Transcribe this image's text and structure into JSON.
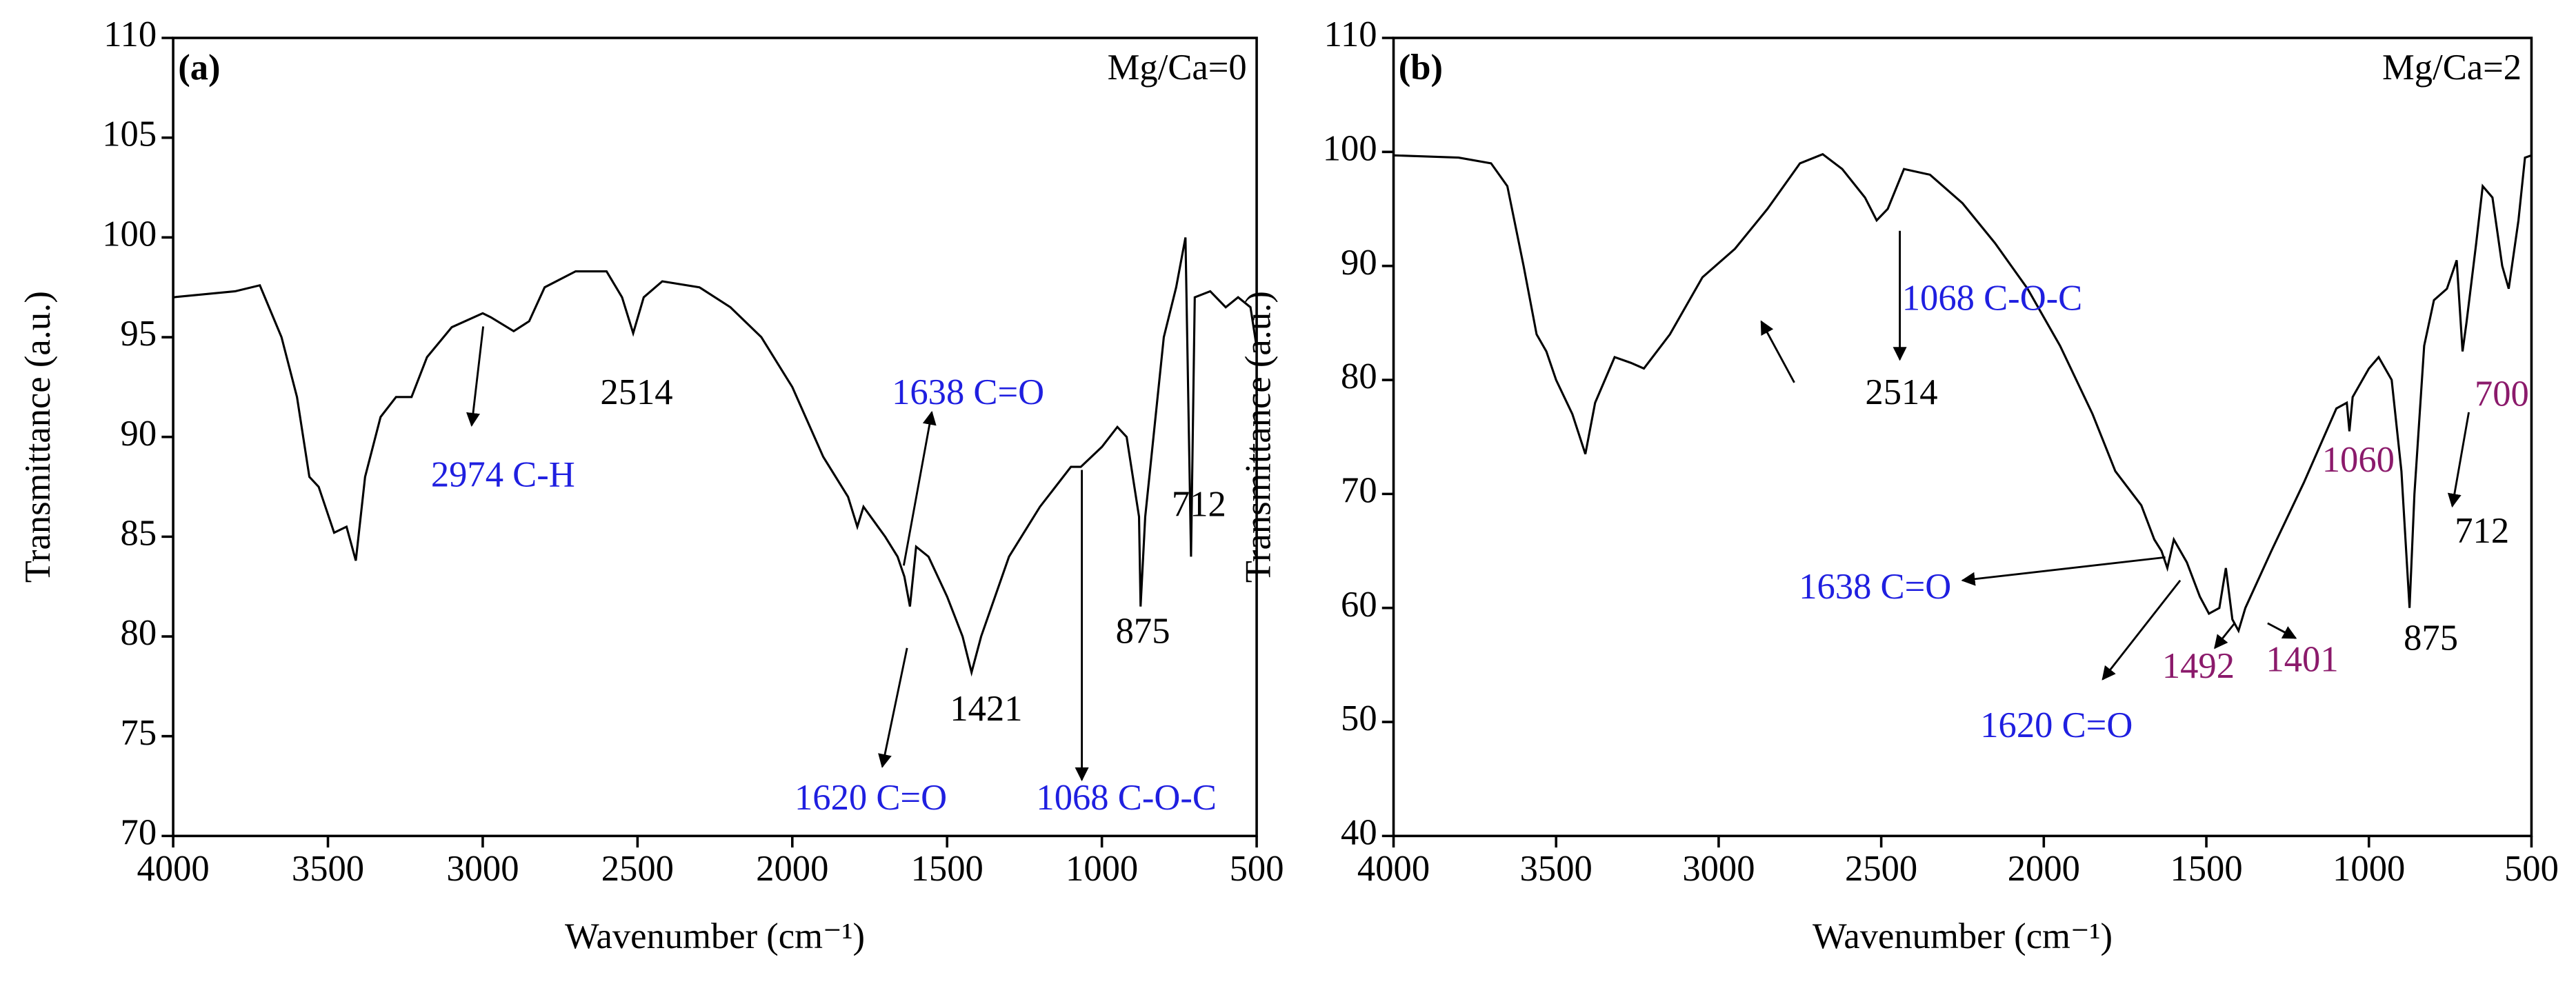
{
  "chart_data": [
    {
      "type": "line",
      "panel_label": "(a)",
      "title": "Mg/Ca=0",
      "x_label": "Wavenumber (cm⁻¹)",
      "y_label": "Transmittance (a.u.)",
      "color": "#000000",
      "xlim": [
        4000,
        500
      ],
      "xticks": [
        4000,
        3500,
        3000,
        2500,
        2000,
        1500,
        1000,
        500
      ],
      "ylim": [
        70,
        110
      ],
      "yticks": [
        70,
        75,
        80,
        85,
        90,
        95,
        100,
        105,
        110
      ],
      "x": [
        4000,
        3800,
        3720,
        3650,
        3600,
        3560,
        3530,
        3480,
        3440,
        3410,
        3380,
        3330,
        3280,
        3230,
        3180,
        3100,
        3000,
        2974,
        2900,
        2850,
        2800,
        2700,
        2600,
        2550,
        2514,
        2480,
        2420,
        2300,
        2200,
        2100,
        2000,
        1900,
        1820,
        1790,
        1770,
        1700,
        1660,
        1638,
        1620,
        1600,
        1560,
        1500,
        1450,
        1421,
        1390,
        1300,
        1200,
        1100,
        1068,
        1000,
        950,
        920,
        880,
        875,
        860,
        800,
        760,
        730,
        712,
        700,
        650,
        600,
        560,
        520,
        500
      ],
      "values": [
        97,
        97.3,
        97.6,
        95,
        92,
        88,
        87.5,
        85.2,
        85.5,
        83.8,
        88,
        91,
        92,
        92,
        94,
        95.5,
        96.2,
        96,
        95.3,
        95.8,
        97.5,
        98.3,
        98.3,
        97,
        95.2,
        97,
        97.8,
        97.5,
        96.5,
        95,
        92.5,
        89,
        87,
        85.5,
        86.5,
        85,
        84,
        83,
        81.5,
        84.5,
        84,
        82,
        80,
        78.2,
        80,
        84,
        86.5,
        88.5,
        88.5,
        89.5,
        90.5,
        90,
        86,
        81.5,
        86,
        95,
        97.5,
        100,
        84,
        97,
        97.3,
        96.5,
        97,
        96.5,
        94.5
      ],
      "annotations": [
        {
          "text": "2974 C-H",
          "color": "#1f1fe0"
        },
        {
          "text": "2514",
          "color": "#000000"
        },
        {
          "text": "1638 C=O",
          "color": "#1f1fe0"
        },
        {
          "text": "1421",
          "color": "#000000"
        },
        {
          "text": "875",
          "color": "#000000"
        },
        {
          "text": "712",
          "color": "#000000"
        },
        {
          "text": "1620 C=O",
          "color": "#1f1fe0"
        },
        {
          "text": "1068 C-O-C",
          "color": "#1f1fe0"
        }
      ]
    },
    {
      "type": "line",
      "panel_label": "(b)",
      "title": "Mg/Ca=2",
      "x_label": "Wavenumber (cm⁻¹)",
      "y_label": "Transmittance (a.u.)",
      "color": "#000000",
      "xlim": [
        4000,
        500
      ],
      "xticks": [
        4000,
        3500,
        3000,
        2500,
        2000,
        1500,
        1000,
        500
      ],
      "ylim": [
        40,
        110
      ],
      "yticks": [
        40,
        50,
        60,
        70,
        80,
        90,
        100,
        110
      ],
      "x": [
        4000,
        3800,
        3700,
        3650,
        3600,
        3560,
        3530,
        3500,
        3450,
        3410,
        3380,
        3320,
        3270,
        3230,
        3150,
        3050,
        2950,
        2850,
        2750,
        2680,
        2620,
        2550,
        2514,
        2480,
        2430,
        2350,
        2250,
        2150,
        2050,
        1950,
        1850,
        1780,
        1700,
        1660,
        1638,
        1620,
        1600,
        1560,
        1520,
        1492,
        1460,
        1440,
        1420,
        1401,
        1380,
        1300,
        1200,
        1100,
        1068,
        1060,
        1050,
        1000,
        970,
        930,
        900,
        875,
        860,
        830,
        800,
        760,
        730,
        712,
        700,
        670,
        650,
        620,
        590,
        570,
        540,
        520,
        500
      ],
      "values": [
        99.7,
        99.5,
        99,
        97,
        90,
        84,
        82.5,
        80,
        77,
        73.5,
        78,
        82,
        81.5,
        81,
        84,
        89,
        91.5,
        95,
        99,
        99.8,
        98.5,
        96,
        94,
        95,
        98.5,
        98,
        95.5,
        92,
        88,
        83,
        77,
        72,
        69,
        66,
        65,
        63.5,
        66,
        64,
        61,
        59.5,
        60,
        63.5,
        59,
        58,
        60,
        65,
        71,
        77.5,
        78,
        75.5,
        78.5,
        81,
        82,
        80,
        72,
        60,
        70,
        83,
        87,
        88,
        90.5,
        82.5,
        85,
        92,
        97,
        96,
        90,
        88,
        94,
        99.5,
        99.7
      ],
      "annotations": [
        {
          "text": "2514",
          "color": "#000000"
        },
        {
          "text": "1068 C-O-C",
          "color": "#1f1fe0"
        },
        {
          "text": "1060",
          "color": "#8b1a6b"
        },
        {
          "text": "700",
          "color": "#8b1a6b"
        },
        {
          "text": "712",
          "color": "#000000"
        },
        {
          "text": "875",
          "color": "#000000"
        },
        {
          "text": "1638 C=O",
          "color": "#1f1fe0"
        },
        {
          "text": "1620 C=O",
          "color": "#1f1fe0"
        },
        {
          "text": "1492",
          "color": "#8b1a6b"
        },
        {
          "text": "1401",
          "color": "#8b1a6b"
        }
      ]
    }
  ]
}
